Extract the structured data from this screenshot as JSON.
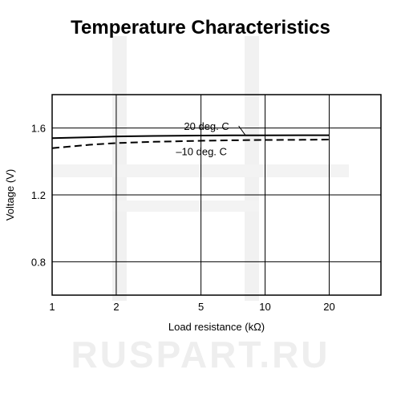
{
  "watermark": {
    "text": "RUSPART.RU",
    "color": "#eeeeee"
  },
  "chart_data": {
    "type": "line",
    "title": "Temperature Characteristics",
    "xlabel": "Load resistance (kΩ)",
    "ylabel": "Voltage (V)",
    "xscale": "log",
    "xlim": [
      1,
      35
    ],
    "ylim": [
      0.6,
      1.8
    ],
    "xticks": [
      1,
      2,
      5,
      10,
      20
    ],
    "xtick_labels": [
      "1",
      "2",
      "5",
      "10",
      "20"
    ],
    "yticks": [
      0.8,
      1.2,
      1.6
    ],
    "ytick_labels": [
      "0.8",
      "1.2",
      "1.6"
    ],
    "x_gridlines": [
      2,
      5,
      10,
      20
    ],
    "y_gridlines": [
      0.8,
      1.2,
      1.6
    ],
    "grid": true,
    "legend": "none",
    "series": [
      {
        "name": "20 deg. C",
        "style": "solid",
        "color": "#000000",
        "x": [
          1,
          1.5,
          2,
          3,
          5,
          7,
          10,
          15,
          20
        ],
        "y": [
          1.54,
          1.545,
          1.55,
          1.553,
          1.555,
          1.556,
          1.556,
          1.557,
          1.557
        ]
      },
      {
        "name": "–10 deg. C",
        "style": "dashed",
        "color": "#000000",
        "x": [
          1,
          1.5,
          2,
          3,
          5,
          7,
          10,
          15,
          20
        ],
        "y": [
          1.48,
          1.5,
          1.51,
          1.518,
          1.524,
          1.527,
          1.529,
          1.53,
          1.531
        ]
      }
    ]
  }
}
